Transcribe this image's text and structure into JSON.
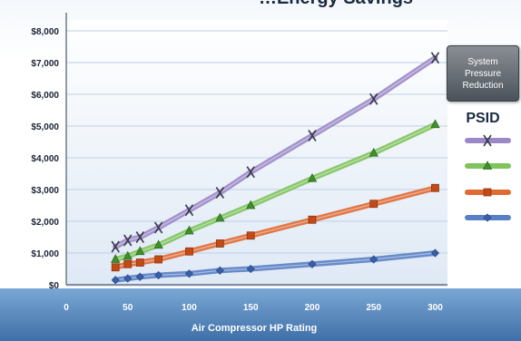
{
  "chart_data": {
    "type": "line",
    "title": "…Energy Savings",
    "xlabel": "Air Compressor HP Rating",
    "ylabel": "",
    "xlim": [
      0,
      310
    ],
    "ylim": [
      0,
      8000
    ],
    "x_ticks": [
      "0",
      "50",
      "100",
      "150",
      "200",
      "250",
      "300"
    ],
    "y_ticks": [
      "$0",
      "$1,000",
      "$2,000",
      "$3,000",
      "$4,000",
      "$5,000",
      "$6,000",
      "$7,000",
      "$8,000"
    ],
    "legend_title": "System Pressure Reduction",
    "legend_subtitle": "PSID",
    "x": [
      40,
      50,
      60,
      75,
      100,
      125,
      150,
      200,
      250,
      300
    ],
    "series": [
      {
        "values": [
          1200,
          1400,
          1500,
          1800,
          2350,
          2900,
          3550,
          4700,
          5850,
          7150
        ],
        "color": "#9b88c6",
        "marker": "x"
      },
      {
        "values": [
          800,
          900,
          1050,
          1250,
          1700,
          2100,
          2500,
          3350,
          4150,
          5050
        ],
        "color": "#7fc35c",
        "marker": "triangle"
      },
      {
        "values": [
          550,
          650,
          700,
          800,
          1050,
          1300,
          1550,
          2050,
          2550,
          3050
        ],
        "color": "#e06a34",
        "marker": "square"
      },
      {
        "values": [
          150,
          200,
          250,
          300,
          350,
          450,
          500,
          650,
          800,
          1000
        ],
        "color": "#5a7fc4",
        "marker": "diamond"
      }
    ],
    "grid": true,
    "legend_position": "right"
  }
}
